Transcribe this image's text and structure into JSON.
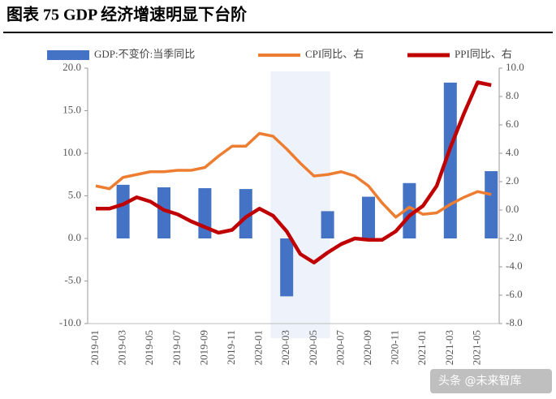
{
  "chart_data": {
    "type": "bar-line",
    "title": "图表 75 GDP 经济增速明显下台阶",
    "watermark": "头条 @未来智库",
    "categories": [
      "2019-01",
      null,
      "2019-03",
      null,
      "2019-05",
      null,
      "2019-07",
      null,
      "2019-09",
      null,
      "2019-11",
      null,
      "2020-01",
      null,
      "2020-03",
      null,
      "2020-05",
      null,
      "2020-07",
      null,
      "2020-09",
      null,
      "2020-11",
      null,
      "2021-01",
      null,
      "2021-03",
      null,
      "2021-05",
      null
    ],
    "series": [
      {
        "name": "GDP:不变价:当季同比",
        "type": "bar",
        "color": "#4472c4",
        "values": [
          null,
          null,
          6.3,
          null,
          null,
          6.0,
          null,
          null,
          5.9,
          null,
          null,
          5.8,
          null,
          null,
          -6.8,
          null,
          null,
          3.2,
          null,
          null,
          4.9,
          null,
          null,
          6.5,
          null,
          null,
          18.3,
          null,
          null,
          7.9
        ]
      },
      {
        "name": "CPI同比、右",
        "type": "line",
        "axis": "y2",
        "color": "#ed7d31",
        "values": [
          1.7,
          1.5,
          2.3,
          2.5,
          2.7,
          2.7,
          2.8,
          2.8,
          3.0,
          3.8,
          4.5,
          4.5,
          5.4,
          5.2,
          4.3,
          3.3,
          2.4,
          2.5,
          2.7,
          2.4,
          1.7,
          0.5,
          -0.5,
          0.2,
          -0.3,
          -0.2,
          0.4,
          0.9,
          1.3,
          1.1
        ]
      },
      {
        "name": "PPI同比、右",
        "type": "line",
        "axis": "y2",
        "color": "#c00000",
        "values": [
          0.1,
          0.1,
          0.4,
          0.9,
          0.6,
          0.0,
          -0.3,
          -0.8,
          -1.2,
          -1.6,
          -1.4,
          -0.5,
          0.1,
          -0.4,
          -1.5,
          -3.1,
          -3.7,
          -3.0,
          -2.4,
          -2.0,
          -2.1,
          -2.1,
          -1.5,
          -0.4,
          0.3,
          1.7,
          4.4,
          6.8,
          9.0,
          8.8
        ]
      }
    ],
    "ylim": [
      -10,
      20
    ],
    "yticks": [
      {
        "value": -10,
        "label": "-10.0"
      },
      {
        "value": -5,
        "label": "-5.0"
      },
      {
        "value": 0,
        "label": "0.0"
      },
      {
        "value": 5,
        "label": "5.0"
      },
      {
        "value": 10,
        "label": "10.0"
      },
      {
        "value": 15,
        "label": "15.0"
      },
      {
        "value": 20,
        "label": "20.0"
      }
    ],
    "y2lim": [
      -8,
      10
    ],
    "y2ticks": [
      {
        "value": -8,
        "label": "-8.0"
      },
      {
        "value": -6,
        "label": "-6.0"
      },
      {
        "value": -4,
        "label": "-4.0"
      },
      {
        "value": -2,
        "label": "-2.0"
      },
      {
        "value": 0,
        "label": "0.0"
      },
      {
        "value": 2,
        "label": "2.0"
      },
      {
        "value": 4,
        "label": "4.0"
      },
      {
        "value": 6,
        "label": "6.0"
      },
      {
        "value": 8,
        "label": "8.0"
      },
      {
        "value": 10,
        "label": "10.0"
      }
    ]
  }
}
